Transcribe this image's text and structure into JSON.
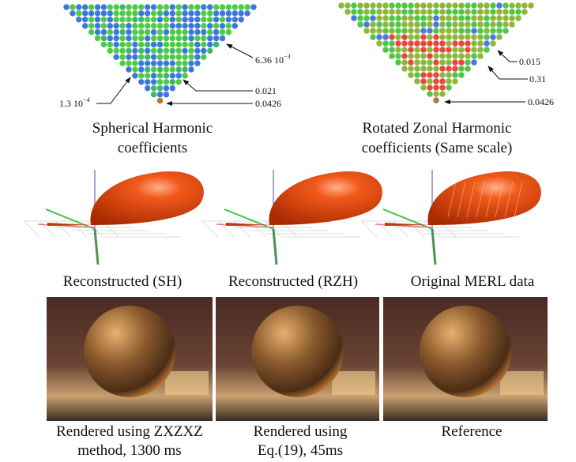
{
  "sh_panel": {
    "caption": [
      "Spherical Harmonic",
      "coefficients"
    ],
    "annotations": [
      {
        "text": "6.36",
        "base": "10",
        "exponent": "−3"
      },
      {
        "text": "0.021"
      },
      {
        "text": "0.0426"
      },
      {
        "text": "1.3",
        "base": "10",
        "exponent": "−4"
      }
    ]
  },
  "rzh_panel": {
    "caption": [
      "Rotated Zonal Harmonic",
      "coefficients (Same scale)"
    ],
    "annotations": [
      {
        "text": "0.015"
      },
      {
        "text": "0.31"
      },
      {
        "text": "0.0426"
      }
    ]
  },
  "lobes": [
    "Reconstructed (SH)",
    "Reconstructed (RZH)",
    "Original MERL data"
  ],
  "renders": [
    [
      "Rendered using ZXZXZ",
      "method, 1300 ms"
    ],
    [
      "Rendered using",
      "Eq.(19), 45ms"
    ],
    [
      "Reference"
    ]
  ]
}
